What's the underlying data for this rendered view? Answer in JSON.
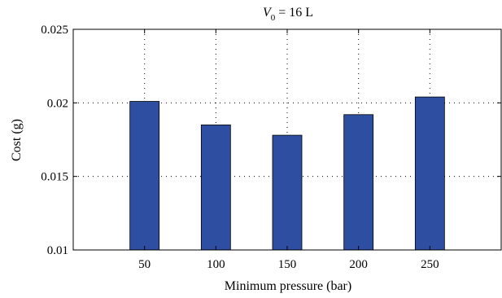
{
  "chart_data": {
    "type": "bar",
    "title": {
      "symbol": "V",
      "subscript": "0",
      "rest": " = 16 L"
    },
    "xlabel": "Minimum pressure (bar)",
    "ylabel": "Cost (g)",
    "categories": [
      "50",
      "100",
      "150",
      "200",
      "250"
    ],
    "x": [
      50,
      100,
      150,
      200,
      250
    ],
    "values": [
      0.0201,
      0.0185,
      0.0178,
      0.0192,
      0.0204
    ],
    "xlim": [
      0,
      300
    ],
    "ylim": [
      0.01,
      0.025
    ],
    "yticks": [
      0.01,
      0.015,
      0.02,
      0.025
    ],
    "ytick_labels": [
      "0.01",
      "0.015",
      "0.02",
      "0.025"
    ],
    "grid": true,
    "bar_color": "#2e4ea1"
  }
}
